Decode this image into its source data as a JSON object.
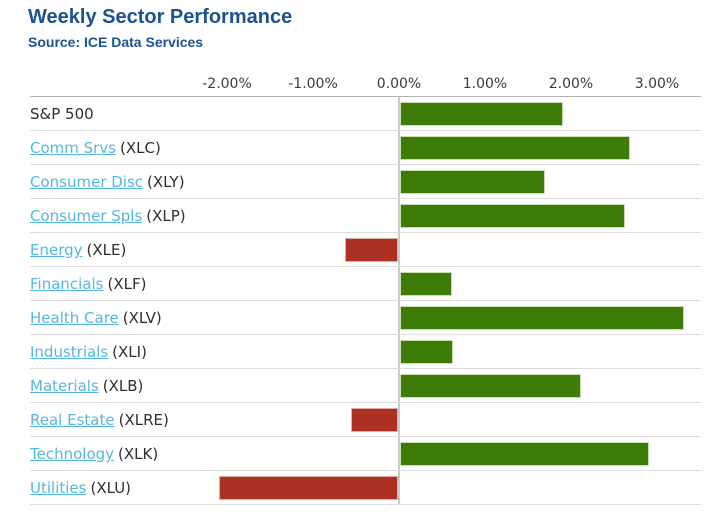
{
  "header": {
    "title": "Weekly Sector Performance",
    "source": "Source: ICE Data Services"
  },
  "colors": {
    "title_blue": "#1c5290",
    "link_blue": "#55b7e0",
    "positive_green": "#3e7c08",
    "negative_red": "#ad3123",
    "positive_border": "#c9dcb4",
    "negative_border": "#ddb0a6",
    "grid_line": "#dcdcdc",
    "zero_line": "#cbcbcb"
  },
  "chart_data": {
    "type": "bar",
    "orientation": "horizontal",
    "title": "Weekly Sector Performance",
    "subtitle": "Source: ICE Data Services",
    "xlabel": "",
    "ylabel": "",
    "xlim": [
      -4.3,
      3.6
    ],
    "legend": "none",
    "grid": "horizontal row separators, single vertical zero axis",
    "x_ticks": [
      {
        "label": "-2.00%",
        "value": -2
      },
      {
        "label": "-1.00%",
        "value": -1
      },
      {
        "label": "0.00%",
        "value": 0
      },
      {
        "label": "1.00%",
        "value": 1
      },
      {
        "label": "2.00%",
        "value": 2
      },
      {
        "label": "3.00%",
        "value": 3
      }
    ],
    "rows": [
      {
        "sector": "S&P 500",
        "ticker": "",
        "value": 1.9,
        "linked": false
      },
      {
        "sector": "Comm Srvs",
        "ticker": "(XLC)",
        "value": 2.67,
        "linked": true
      },
      {
        "sector": "Consumer Disc",
        "ticker": "(XLY)",
        "value": 1.69,
        "linked": true
      },
      {
        "sector": "Consumer Spls",
        "ticker": "(XLP)",
        "value": 2.62,
        "linked": true
      },
      {
        "sector": "Energy",
        "ticker": "(XLE)",
        "value": -0.62,
        "linked": true
      },
      {
        "sector": "Financials",
        "ticker": "(XLF)",
        "value": 0.6,
        "linked": true
      },
      {
        "sector": "Health Care",
        "ticker": "(XLV)",
        "value": 3.3,
        "linked": true
      },
      {
        "sector": "Industrials",
        "ticker": "(XLI)",
        "value": 0.62,
        "linked": true
      },
      {
        "sector": "Materials",
        "ticker": "(XLB)",
        "value": 2.1,
        "linked": true
      },
      {
        "sector": "Real Estate",
        "ticker": "(XLRE)",
        "value": -0.55,
        "linked": true
      },
      {
        "sector": "Technology",
        "ticker": "(XLK)",
        "value": 2.89,
        "linked": true
      },
      {
        "sector": "Utilities",
        "ticker": "(XLU)",
        "value": -2.08,
        "linked": true
      }
    ]
  }
}
